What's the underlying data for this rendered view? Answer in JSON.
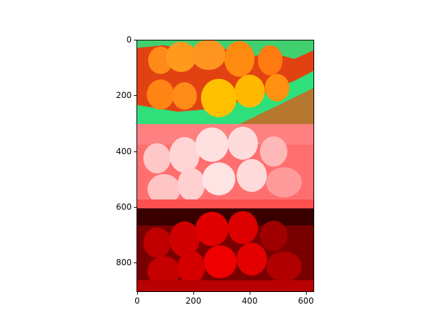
{
  "figure": {
    "y_ticks": [
      "0",
      "200",
      "400",
      "600",
      "800"
    ],
    "x_ticks": [
      "0",
      "200",
      "400",
      "600"
    ]
  },
  "image": {
    "description_bands": [
      {
        "name": "pseudo-color-band",
        "palette": [
          "#2fe07a",
          "#f04a10",
          "#ff9a18",
          "#ffc400",
          "#e83c0c"
        ]
      },
      {
        "name": "light-red-band",
        "palette": [
          "#ff6f6f",
          "#ffd0d0",
          "#ff4545",
          "#ffb0b0"
        ]
      },
      {
        "name": "dark-red-band",
        "palette": [
          "#3a0000",
          "#c80000",
          "#ff1010",
          "#800000"
        ]
      }
    ],
    "y_range": [
      0,
      905
    ],
    "x_range": [
      0,
      630
    ]
  }
}
